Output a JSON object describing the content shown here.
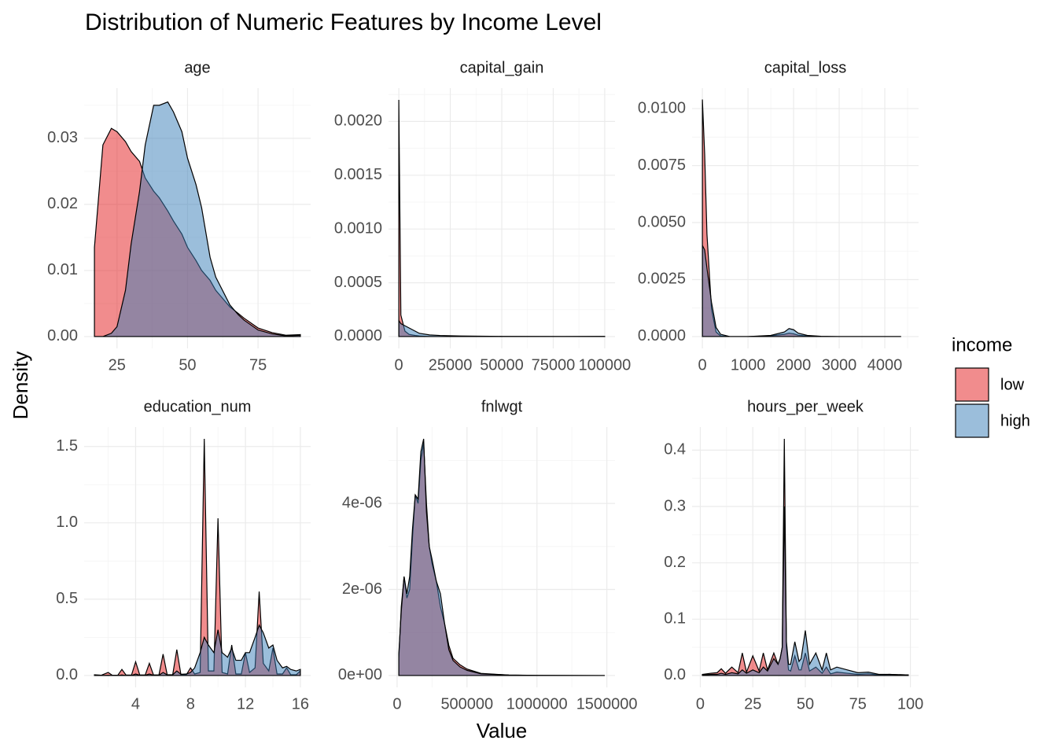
{
  "title": "Distribution of Numeric Features by Income Level",
  "x_label": "Value",
  "y_label": "Density",
  "legend": {
    "title": "income",
    "position": "right"
  },
  "chart_data": [
    {
      "type": "area",
      "title": "age",
      "x": [
        17,
        20,
        23,
        25,
        28,
        30,
        33,
        35,
        38,
        40,
        43,
        45,
        48,
        50,
        53,
        55,
        58,
        60,
        63,
        65,
        68,
        70,
        75,
        80,
        85,
        90
      ],
      "series": [
        {
          "name": "low",
          "color": "#E41A1C",
          "values": [
            0.0135,
            0.029,
            0.0315,
            0.031,
            0.0295,
            0.028,
            0.0265,
            0.024,
            0.022,
            0.021,
            0.019,
            0.0175,
            0.0155,
            0.0135,
            0.0115,
            0.01,
            0.0085,
            0.007,
            0.0055,
            0.0045,
            0.0035,
            0.0028,
            0.0013,
            0.0006,
            0.0002,
            0.0003
          ]
        },
        {
          "name": "high",
          "color": "#377EB8",
          "values": [
            0,
            0,
            0.0005,
            0.0015,
            0.007,
            0.014,
            0.022,
            0.029,
            0.035,
            0.035,
            0.0355,
            0.034,
            0.031,
            0.027,
            0.023,
            0.0195,
            0.012,
            0.009,
            0.0065,
            0.0048,
            0.0033,
            0.0025,
            0.001,
            0.0004,
            0.0001,
            0.0002
          ]
        }
      ],
      "xlim": [
        13.35,
        93.65
      ],
      "ylim": [
        -0.00179,
        0.0376
      ],
      "xticks": [
        25,
        50,
        75
      ],
      "yticks": [
        {
          "value": 0,
          "label": "0.00"
        },
        {
          "value": 0.01,
          "label": "0.01"
        },
        {
          "value": 0.02,
          "label": "0.02"
        },
        {
          "value": 0.03,
          "label": "0.03"
        }
      ],
      "grid": true
    },
    {
      "type": "area",
      "title": "capital_gain",
      "x": [
        0,
        1000,
        3000,
        5000,
        8000,
        10000,
        15000,
        20000,
        30000,
        50000,
        80000,
        99999
      ],
      "series": [
        {
          "name": "low",
          "color": "#E41A1C",
          "values": [
            0.0022,
            0.0002,
            5e-05,
            2e-05,
            1e-05,
            5e-06,
            0,
            0,
            0,
            0,
            0,
            0
          ]
        },
        {
          "name": "high",
          "color": "#377EB8",
          "values": [
            0.00015,
            0.00012,
            0.0001,
            8e-05,
            5e-05,
            3e-05,
            1.5e-05,
            1e-05,
            5e-06,
            2e-06,
            1e-06,
            2e-06
          ]
        }
      ],
      "xlim": [
        -5000,
        105000
      ],
      "ylim": [
        -0.00011,
        0.00231
      ],
      "xticks": [
        0,
        25000,
        50000,
        75000,
        100000
      ],
      "yticks": [
        {
          "value": 0,
          "label": "0.0000"
        },
        {
          "value": 0.0005,
          "label": "0.0005"
        },
        {
          "value": 0.001,
          "label": "0.0010"
        },
        {
          "value": 0.0015,
          "label": "0.0015"
        },
        {
          "value": 0.002,
          "label": "0.0020"
        }
      ],
      "grid": true
    },
    {
      "type": "area",
      "title": "capital_loss",
      "x": [
        0,
        50,
        100,
        200,
        300,
        400,
        600,
        1000,
        1500,
        1800,
        1900,
        2000,
        2100,
        2300,
        2600,
        3000,
        4356
      ],
      "series": [
        {
          "name": "low",
          "color": "#E41A1C",
          "values": [
            0.0104,
            0.008,
            0.0045,
            0.0012,
            0.0002,
            3e-05,
            0,
            0,
            3e-05,
            0.0001,
            0.00015,
            0.00012,
            6e-05,
            2e-05,
            0,
            0,
            0
          ]
        },
        {
          "name": "high",
          "color": "#377EB8",
          "values": [
            0.004,
            0.0038,
            0.003,
            0.0015,
            0.0004,
            0.0001,
            0,
            0,
            5e-05,
            0.0002,
            0.00035,
            0.0003,
            0.00015,
            5e-05,
            1e-05,
            0,
            0
          ]
        }
      ],
      "xlim": [
        -226,
        4741
      ],
      "ylim": [
        -0.00052,
        0.0109
      ],
      "xticks": [
        0,
        1000,
        2000,
        3000,
        4000
      ],
      "yticks": [
        {
          "value": 0,
          "label": "0.0000"
        },
        {
          "value": 0.0025,
          "label": "0.0025"
        },
        {
          "value": 0.005,
          "label": "0.0050"
        },
        {
          "value": 0.0075,
          "label": "0.0075"
        },
        {
          "value": 0.01,
          "label": "0.0100"
        }
      ],
      "grid": true
    },
    {
      "type": "area",
      "title": "education_num",
      "x": [
        1,
        1.5,
        2,
        2.3,
        2.7,
        3,
        3.3,
        3.7,
        4,
        4.3,
        4.7,
        5,
        5.3,
        5.7,
        6,
        6.3,
        6.7,
        7,
        7.3,
        7.7,
        8,
        8.3,
        8.7,
        9,
        9.3,
        9.7,
        10,
        10.3,
        10.7,
        11,
        11.3,
        11.7,
        12,
        12.3,
        12.7,
        13,
        13.3,
        13.7,
        14,
        14.3,
        14.7,
        15,
        15.3,
        15.7,
        16
      ],
      "series": [
        {
          "name": "low",
          "color": "#E41A1C",
          "values": [
            0.005,
            0.002,
            0.02,
            0.002,
            0.002,
            0.04,
            0.003,
            0.003,
            0.09,
            0.004,
            0.004,
            0.08,
            0.004,
            0.004,
            0.14,
            0.005,
            0.005,
            0.17,
            0.006,
            0.006,
            0.05,
            0.01,
            0.02,
            1.55,
            0.03,
            0.03,
            1.03,
            0.02,
            0.01,
            0.2,
            0.01,
            0.01,
            0.15,
            0.02,
            0.05,
            0.55,
            0.08,
            0.03,
            0.18,
            0.01,
            0.01,
            0.05,
            0.005,
            0.005,
            0.03
          ]
        },
        {
          "name": "high",
          "color": "#377EB8",
          "values": [
            0,
            0,
            0.002,
            0,
            0,
            0.004,
            0,
            0,
            0.01,
            0.002,
            0.002,
            0.01,
            0.002,
            0.003,
            0.02,
            0.004,
            0.005,
            0.03,
            0.008,
            0.01,
            0.02,
            0.05,
            0.15,
            0.25,
            0.2,
            0.15,
            0.3,
            0.15,
            0.12,
            0.18,
            0.1,
            0.1,
            0.15,
            0.15,
            0.25,
            0.33,
            0.28,
            0.18,
            0.2,
            0.1,
            0.05,
            0.06,
            0.04,
            0.03,
            0.04
          ]
        }
      ],
      "xlim": [
        0.25,
        16.75
      ],
      "ylim": [
        -0.0775,
        1.6275
      ],
      "xticks": [
        4,
        8,
        12,
        16
      ],
      "yticks": [
        {
          "value": 0,
          "label": "0.0"
        },
        {
          "value": 0.5,
          "label": "0.5"
        },
        {
          "value": 1,
          "label": "1.0"
        },
        {
          "value": 1.5,
          "label": "1.5"
        }
      ],
      "grid": true
    },
    {
      "type": "area",
      "title": "fnlwgt",
      "x": [
        12285,
        30000,
        50000,
        70000,
        90000,
        110000,
        130000,
        150000,
        170000,
        190000,
        210000,
        230000,
        250000,
        280000,
        310000,
        340000,
        370000,
        400000,
        450000,
        500000,
        600000,
        800000,
        1000000,
        1484705
      ],
      "series": [
        {
          "name": "low",
          "color": "#E41A1C",
          "values": [
            4e-07,
            1.6e-06,
            2.3e-06,
            1.8e-06,
            2e-06,
            3.2e-06,
            4.2e-06,
            4e-06,
            5e-06,
            5.4e-06,
            4e-06,
            3e-06,
            2.6e-06,
            2.2e-06,
            1.6e-06,
            1.2e-06,
            7e-07,
            4e-07,
            2.5e-07,
            1.5e-07,
            5e-08,
            1e-08,
            5e-09,
            0
          ]
        },
        {
          "name": "high",
          "color": "#377EB8",
          "values": [
            5e-07,
            1.5e-06,
            2.3e-06,
            1.9e-06,
            2.3e-06,
            3.4e-06,
            4.2e-06,
            4.1e-06,
            5.2e-06,
            5.5e-06,
            3.8e-06,
            3e-06,
            2.7e-06,
            2.2e-06,
            1.9e-06,
            1.2e-06,
            6e-07,
            3.5e-07,
            2e-07,
            1.2e-07,
            4e-08,
            1e-08,
            3e-09,
            0
          ]
        }
      ],
      "xlim": [
        -61336,
        1558326
      ],
      "ylim": [
        -2.75e-07,
        5.775e-06
      ],
      "xticks": [
        0,
        500000,
        1000000,
        1500000
      ],
      "yticks": [
        {
          "value": 0,
          "label": "0e+00"
        },
        {
          "value": 2e-06,
          "label": "2e-06"
        },
        {
          "value": 4e-06,
          "label": "4e-06"
        }
      ],
      "grid": true
    },
    {
      "type": "area",
      "title": "hours_per_week",
      "x": [
        1,
        5,
        8,
        10,
        12,
        15,
        18,
        20,
        22,
        25,
        28,
        30,
        32,
        35,
        37,
        38,
        39,
        40,
        41,
        42,
        43,
        45,
        47,
        48,
        50,
        52,
        55,
        58,
        60,
        62,
        65,
        70,
        75,
        80,
        85,
        90,
        99
      ],
      "series": [
        {
          "name": "low",
          "color": "#E41A1C",
          "values": [
            0.002,
            0.004,
            0.005,
            0.012,
            0.004,
            0.015,
            0.005,
            0.04,
            0.006,
            0.035,
            0.008,
            0.04,
            0.01,
            0.04,
            0.02,
            0.03,
            0.05,
            0.42,
            0.05,
            0.01,
            0.008,
            0.035,
            0.01,
            0.01,
            0.04,
            0.008,
            0.015,
            0.004,
            0.015,
            0.003,
            0.006,
            0.004,
            0.002,
            0.003,
            0.001,
            0.002,
            0.001
          ]
        },
        {
          "name": "high",
          "color": "#377EB8",
          "values": [
            0.001,
            0.002,
            0.002,
            0.004,
            0.002,
            0.005,
            0.003,
            0.01,
            0.004,
            0.01,
            0.005,
            0.015,
            0.008,
            0.03,
            0.02,
            0.03,
            0.05,
            0.3,
            0.06,
            0.02,
            0.02,
            0.06,
            0.025,
            0.03,
            0.08,
            0.02,
            0.04,
            0.01,
            0.04,
            0.01,
            0.015,
            0.01,
            0.005,
            0.006,
            0.002,
            0.002,
            0.001
          ]
        }
      ],
      "xlim": [
        -3.9,
        103.9
      ],
      "ylim": [
        -0.021,
        0.441
      ],
      "xticks": [
        0,
        25,
        50,
        75,
        100
      ],
      "yticks": [
        {
          "value": 0,
          "label": "0.0"
        },
        {
          "value": 0.1,
          "label": "0.1"
        },
        {
          "value": 0.2,
          "label": "0.2"
        },
        {
          "value": 0.3,
          "label": "0.3"
        },
        {
          "value": 0.4,
          "label": "0.4"
        }
      ],
      "grid": true
    }
  ]
}
